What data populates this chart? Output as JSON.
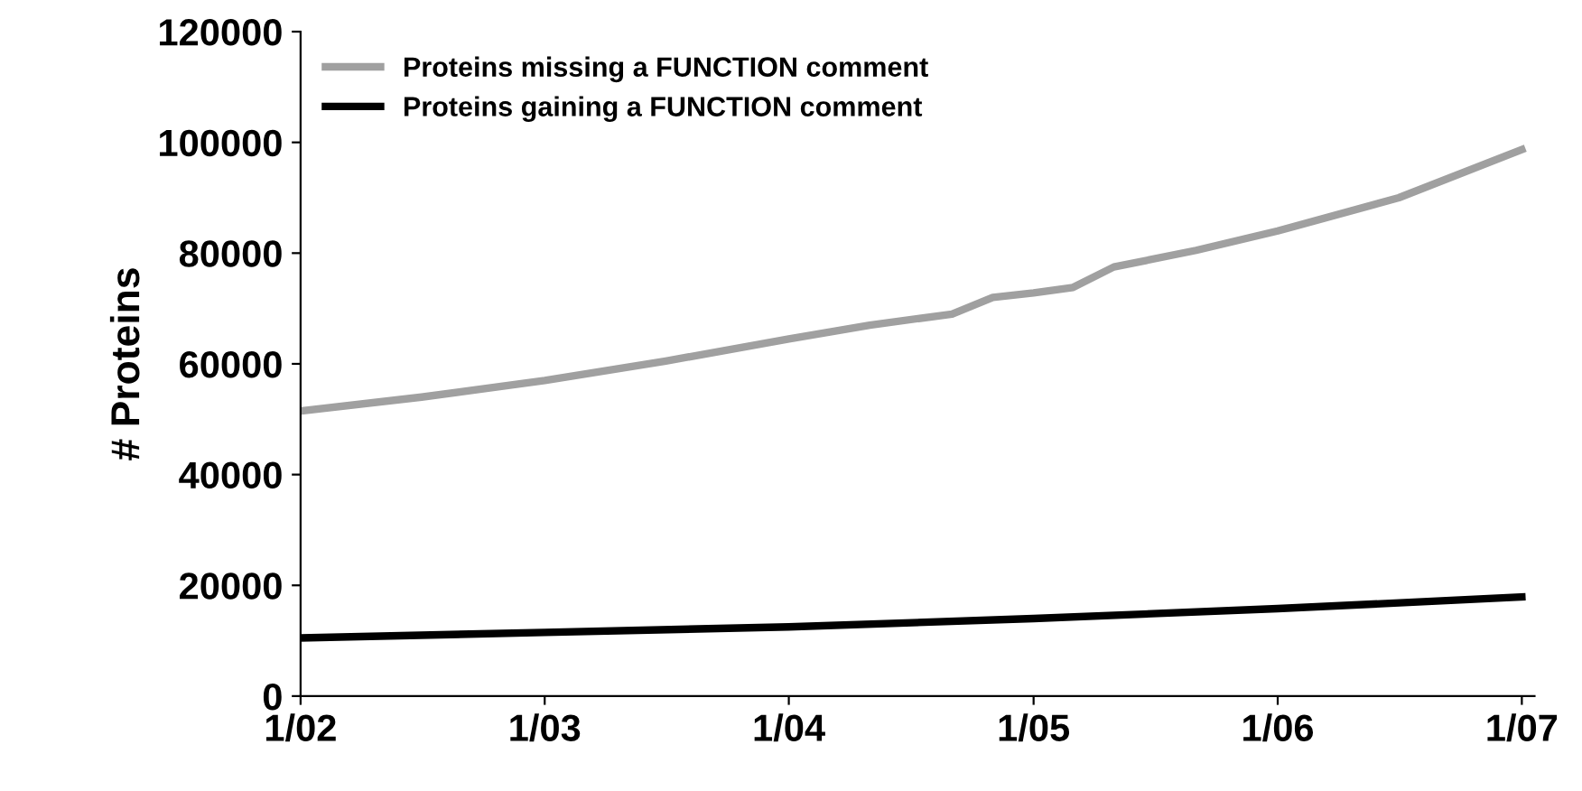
{
  "chart_data": {
    "type": "line",
    "ylabel": "# Proteins",
    "xlim": [
      "2002-01-01",
      "2007-01-20"
    ],
    "xticks": [
      {
        "value": "2002-01",
        "label": "1/02"
      },
      {
        "value": "2003-01",
        "label": "1/03"
      },
      {
        "value": "2004-01",
        "label": "1/04"
      },
      {
        "value": "2005-01",
        "label": "1/05"
      },
      {
        "value": "2006-01",
        "label": "1/06"
      },
      {
        "value": "2007-01",
        "label": "1/07"
      }
    ],
    "ylim": [
      0,
      120000
    ],
    "yticks": [
      0,
      20000,
      40000,
      60000,
      80000,
      100000,
      120000
    ],
    "grid": false,
    "legend": "top left",
    "marker": "none",
    "line_style": "solid",
    "series": [
      {
        "name": "Proteins missing a FUNCTION comment",
        "color": "#a0a0a0",
        "x": [
          "2002-01",
          "2002-07",
          "2003-01",
          "2003-07",
          "2004-01",
          "2004-05",
          "2004-09",
          "2004-11",
          "2005-01",
          "2005-03",
          "2005-05",
          "2005-09",
          "2006-01",
          "2006-07",
          "2007-01"
        ],
        "values": [
          51500,
          54000,
          57000,
          60500,
          64500,
          67000,
          69000,
          72000,
          72800,
          73800,
          77500,
          80500,
          84000,
          90000,
          98700
        ]
      },
      {
        "name": "Proteins gaining a FUNCTION comment",
        "color": "#000000",
        "x": [
          "2002-01",
          "2003-01",
          "2004-01",
          "2005-01",
          "2006-01",
          "2007-01"
        ],
        "values": [
          10500,
          11500,
          12500,
          14000,
          15800,
          17900
        ]
      }
    ]
  }
}
